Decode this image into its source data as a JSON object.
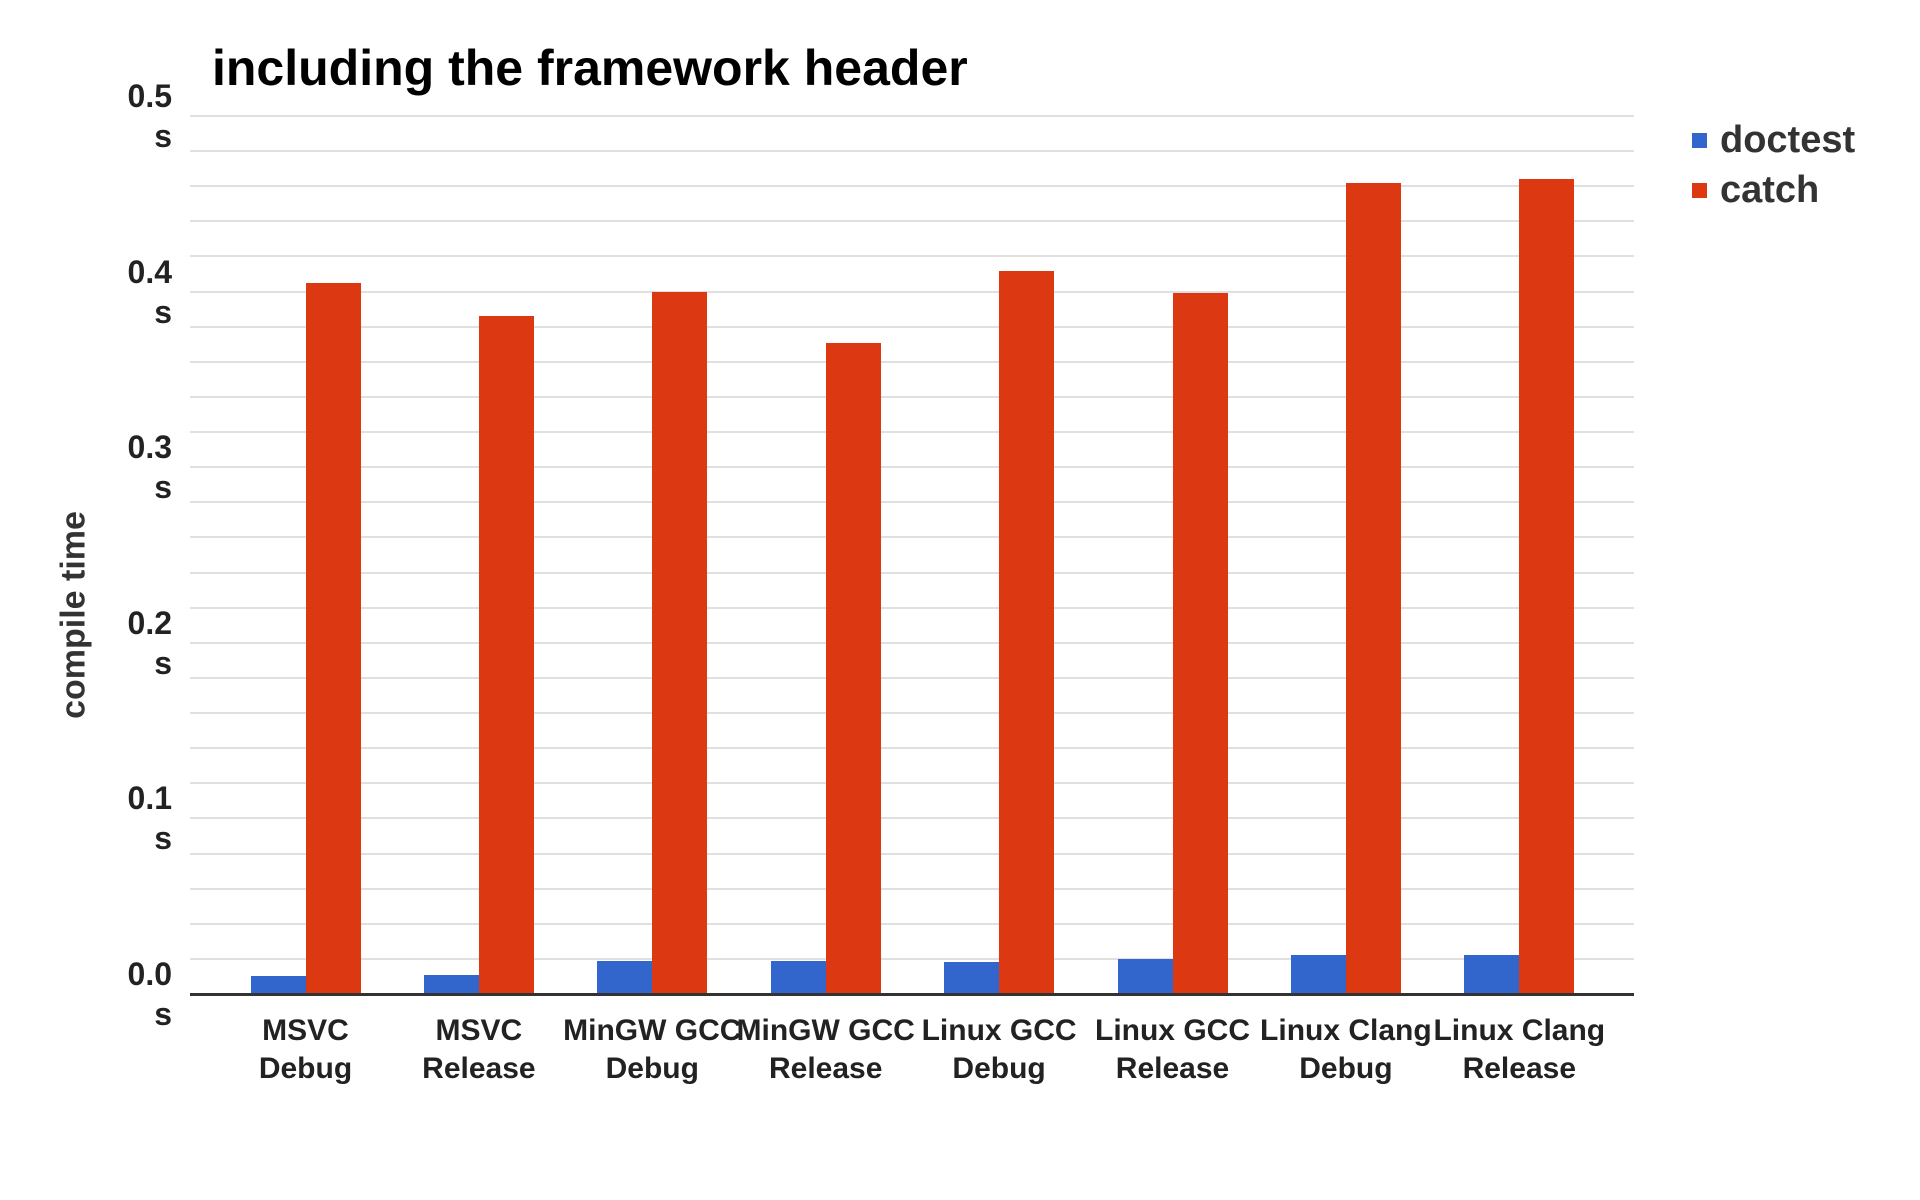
{
  "chart_data": {
    "type": "bar",
    "title": "including the framework header",
    "ylabel": "compile time",
    "xlabel": "",
    "unit": "s",
    "ylim": [
      0,
      0.5
    ],
    "y_major_ticks": [
      0.0,
      0.1,
      0.2,
      0.3,
      0.4,
      0.5
    ],
    "y_minor_step": 0.02,
    "grid": true,
    "legend_position": "top-right",
    "categories": [
      "MSVC Debug",
      "MSVC Release",
      "MinGW GCC Debug",
      "MinGW GCC Release",
      "Linux GCC Debug",
      "Linux GCC Release",
      "Linux Clang Debug",
      "Linux Clang Release"
    ],
    "series": [
      {
        "name": "doctest",
        "color": "#3366cc",
        "values": [
          0.01,
          0.011,
          0.019,
          0.019,
          0.018,
          0.02,
          0.022,
          0.022
        ]
      },
      {
        "name": "catch",
        "color": "#dc3912",
        "values": [
          0.405,
          0.386,
          0.4,
          0.371,
          0.412,
          0.399,
          0.462,
          0.464
        ]
      }
    ]
  }
}
